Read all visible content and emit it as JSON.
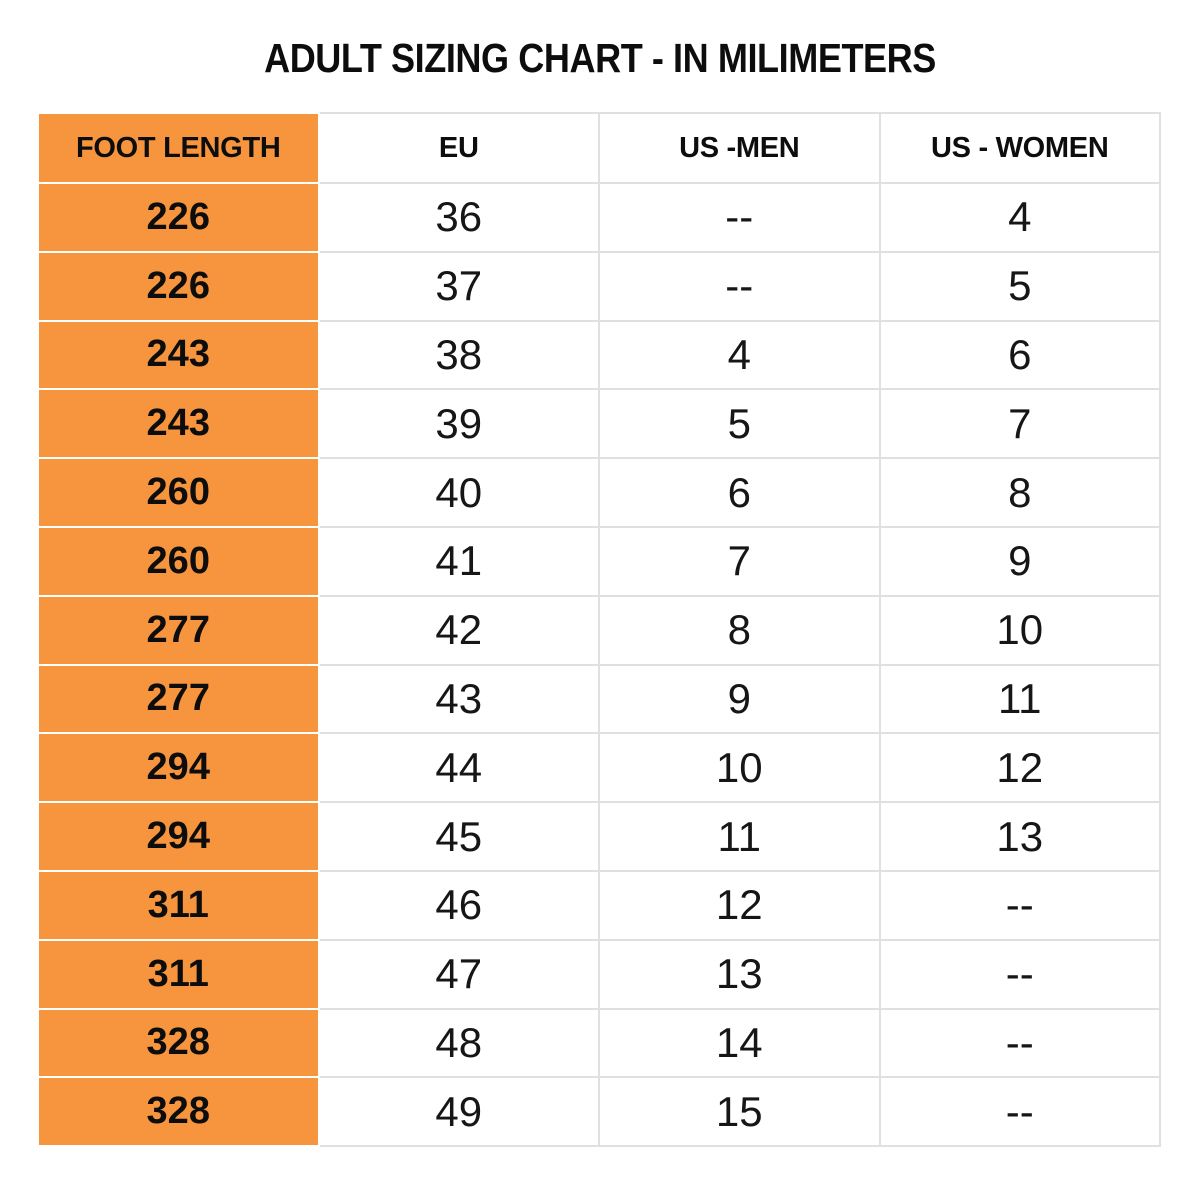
{
  "title": "ADULT SIZING CHART - IN MILIMETERS",
  "colors": {
    "foot_length_column_fill": "#F7953F",
    "grid_line": "#E0E0E0",
    "orange_cell_divider": "#FFFFFF",
    "text": "#111111",
    "background": "#FFFFFF"
  },
  "chart_data": {
    "type": "table",
    "title": "ADULT SIZING CHART - IN MILIMETERS",
    "columns": [
      "FOOT LENGTH",
      "EU",
      "US -MEN",
      "US - WOMEN"
    ],
    "rows": [
      [
        "226",
        "36",
        "--",
        "4"
      ],
      [
        "226",
        "37",
        "--",
        "5"
      ],
      [
        "243",
        "38",
        "4",
        "6"
      ],
      [
        "243",
        "39",
        "5",
        "7"
      ],
      [
        "260",
        "40",
        "6",
        "8"
      ],
      [
        "260",
        "41",
        "7",
        "9"
      ],
      [
        "277",
        "42",
        "8",
        "10"
      ],
      [
        "277",
        "43",
        "9",
        "11"
      ],
      [
        "294",
        "44",
        "10",
        "12"
      ],
      [
        "294",
        "45",
        "11",
        "13"
      ],
      [
        "311",
        "46",
        "12",
        "--"
      ],
      [
        "311",
        "47",
        "13",
        "--"
      ],
      [
        "328",
        "48",
        "14",
        "--"
      ],
      [
        "328",
        "49",
        "15",
        "--"
      ]
    ]
  }
}
